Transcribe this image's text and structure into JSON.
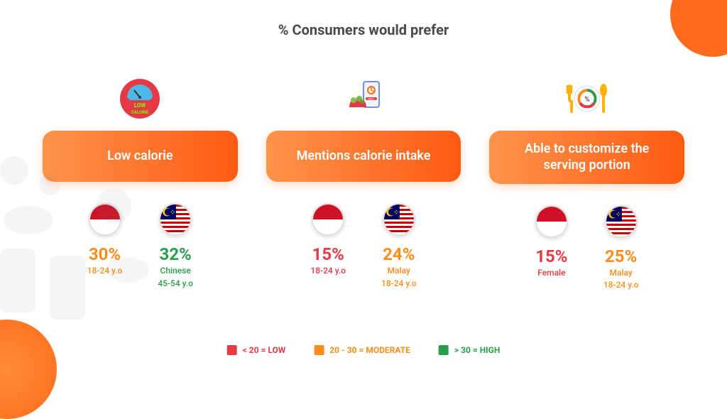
{
  "title": "% Consumers would prefer",
  "colors": {
    "low": "#e63946",
    "moderate": "#ff8c1a",
    "high": "#2a9d4a",
    "text": "#4a4a4a",
    "accent": "#ff6b1a",
    "pill_gradient_start": "#ff934a",
    "pill_gradient_end": "#ff5a13",
    "background": "#ffffff"
  },
  "legend": [
    {
      "color": "#e63946",
      "label": "< 20 = LOW"
    },
    {
      "color": "#ff8c1a",
      "label": "20 - 30 = MODERATE"
    },
    {
      "color": "#2a9d4a",
      "label": "> 30 = HIGH"
    }
  ],
  "cards": [
    {
      "label": "Low calorie",
      "icon": "low-calorie-badge",
      "stats": [
        {
          "flag": "indonesia",
          "value": "30%",
          "detail1": "18-24 y.o",
          "detail2": "",
          "color": "#ff8c1a"
        },
        {
          "flag": "malaysia",
          "value": "32%",
          "detail1": "Chinese",
          "detail2": "45-54 y.o",
          "color": "#2a9d4a"
        }
      ]
    },
    {
      "label": "Mentions calorie intake",
      "icon": "meal-app",
      "stats": [
        {
          "flag": "indonesia",
          "value": "15%",
          "detail1": "18-24 y.o",
          "detail2": "",
          "color": "#e63946"
        },
        {
          "flag": "malaysia",
          "value": "24%",
          "detail1": "Malay",
          "detail2": "18-24 y.o",
          "color": "#ff8c1a"
        }
      ]
    },
    {
      "label": "Able to customize the serving portion",
      "icon": "plate-utensils",
      "stats": [
        {
          "flag": "indonesia",
          "value": "15%",
          "detail1": "Female",
          "detail2": "",
          "color": "#e63946"
        },
        {
          "flag": "malaysia",
          "value": "25%",
          "detail1": "Malay",
          "detail2": "18-24 y.o",
          "color": "#ff8c1a"
        }
      ]
    }
  ]
}
